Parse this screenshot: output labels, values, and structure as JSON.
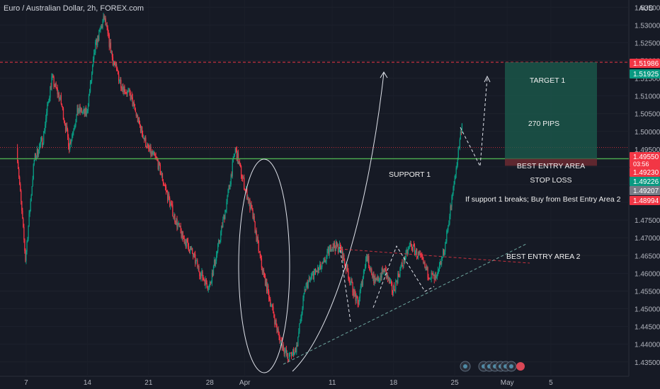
{
  "chart_data": {
    "type": "candlestick",
    "title": "Euro / Australian Dollar, 2h, FOREX.com",
    "currency": "AUD",
    "ylim": [
      1.4325,
      1.5405
    ],
    "y_ticks": [
      "1.53500",
      "1.53000",
      "1.52500",
      "1.52000",
      "1.51500",
      "1.51000",
      "1.50500",
      "1.50000",
      "1.49500",
      "1.49000",
      "1.48500",
      "1.48000",
      "1.47500",
      "1.47000",
      "1.46500",
      "1.46000",
      "1.45500",
      "1.45000",
      "1.44500",
      "1.44000",
      "1.43500"
    ],
    "x_tick_labels": [
      "7",
      "14",
      "21",
      "28",
      "Apr",
      "11",
      "18",
      "25",
      "May",
      "5"
    ],
    "price_path": [
      [
        "Mar 6",
        1.4955
      ],
      [
        "Mar 7",
        1.464
      ],
      [
        "Mar 8",
        1.492
      ],
      [
        "Mar 9",
        1.498
      ],
      [
        "Mar 10",
        1.515
      ],
      [
        "Mar 11",
        1.509
      ],
      [
        "Mar 12",
        1.496
      ],
      [
        "Mar 13",
        1.506
      ],
      [
        "Mar 14",
        1.505
      ],
      [
        "Mar 15",
        1.524
      ],
      [
        "Mar 16",
        1.532
      ],
      [
        "Mar 17",
        1.52
      ],
      [
        "Mar 18",
        1.513
      ],
      [
        "Mar 19",
        1.51
      ],
      [
        "Mar 20",
        1.502
      ],
      [
        "Mar 21",
        1.495
      ],
      [
        "Mar 22",
        1.492
      ],
      [
        "Mar 23",
        1.484
      ],
      [
        "Mar 24",
        1.476
      ],
      [
        "Mar 25",
        1.47
      ],
      [
        "Mar 26",
        1.466
      ],
      [
        "Mar 27",
        1.46
      ],
      [
        "Mar 28",
        1.456
      ],
      [
        "Mar 29",
        1.467
      ],
      [
        "Mar 30",
        1.48
      ],
      [
        "Mar 31",
        1.495
      ],
      [
        "Apr 1",
        1.485
      ],
      [
        "Apr 2",
        1.476
      ],
      [
        "Apr 3",
        1.462
      ],
      [
        "Apr 4",
        1.452
      ],
      [
        "Apr 5",
        1.442
      ],
      [
        "Apr 6",
        1.436
      ],
      [
        "Apr 7",
        1.439
      ],
      [
        "Apr 8",
        1.456
      ],
      [
        "Apr 9",
        1.46
      ],
      [
        "Apr 10",
        1.462
      ],
      [
        "Apr 11",
        1.468
      ],
      [
        "Apr 12",
        1.467
      ],
      [
        "Apr 13",
        1.459
      ],
      [
        "Apr 14",
        1.451
      ],
      [
        "Apr 15",
        1.465
      ],
      [
        "Apr 16",
        1.457
      ],
      [
        "Apr 17",
        1.461
      ],
      [
        "Apr 18",
        1.455
      ],
      [
        "Apr 19",
        1.462
      ],
      [
        "Apr 20",
        1.468
      ],
      [
        "Apr 21",
        1.465
      ],
      [
        "Apr 22",
        1.46
      ],
      [
        "Apr 23",
        1.458
      ],
      [
        "Apr 24",
        1.468
      ],
      [
        "Apr 25",
        1.485
      ],
      [
        "Apr 26",
        1.504
      ],
      [
        "Apr 27",
        1.499
      ],
      [
        "Apr 28",
        1.4955
      ]
    ],
    "levels": {
      "target_1_dashed": 1.5195,
      "support_1": 1.4923
    },
    "price_badges": [
      {
        "value": "1.51986",
        "color": "#f23645"
      },
      {
        "value": "1.51925",
        "color": "#089981"
      },
      {
        "value": "1.49550",
        "sub": "03:56",
        "color": "#f23645"
      },
      {
        "value": "1.49230",
        "color": "#f23645"
      },
      {
        "value": "1.49226",
        "color": "#089981"
      },
      {
        "value": "1.49207",
        "color": "#787b86"
      },
      {
        "value": "1.48994",
        "color": "#f23645"
      }
    ],
    "annotations": {
      "target_1": "TARGET 1",
      "pips": "270 PIPS",
      "best_entry_area": "BEST ENTRY AREA",
      "stop_loss": "STOP LOSS",
      "support_1": "SUPPORT 1",
      "if_support_breaks": "If support 1 breaks; Buy from Best Entry Area 2",
      "best_entry_area_2": "BEST ENTRY AREA 2"
    },
    "colors": {
      "background": "#161a25",
      "up": "#089981",
      "down": "#f23645",
      "support": "#4caf50",
      "target_zone": "#1b5e4d",
      "stop_zone": "#6b2a31"
    }
  }
}
